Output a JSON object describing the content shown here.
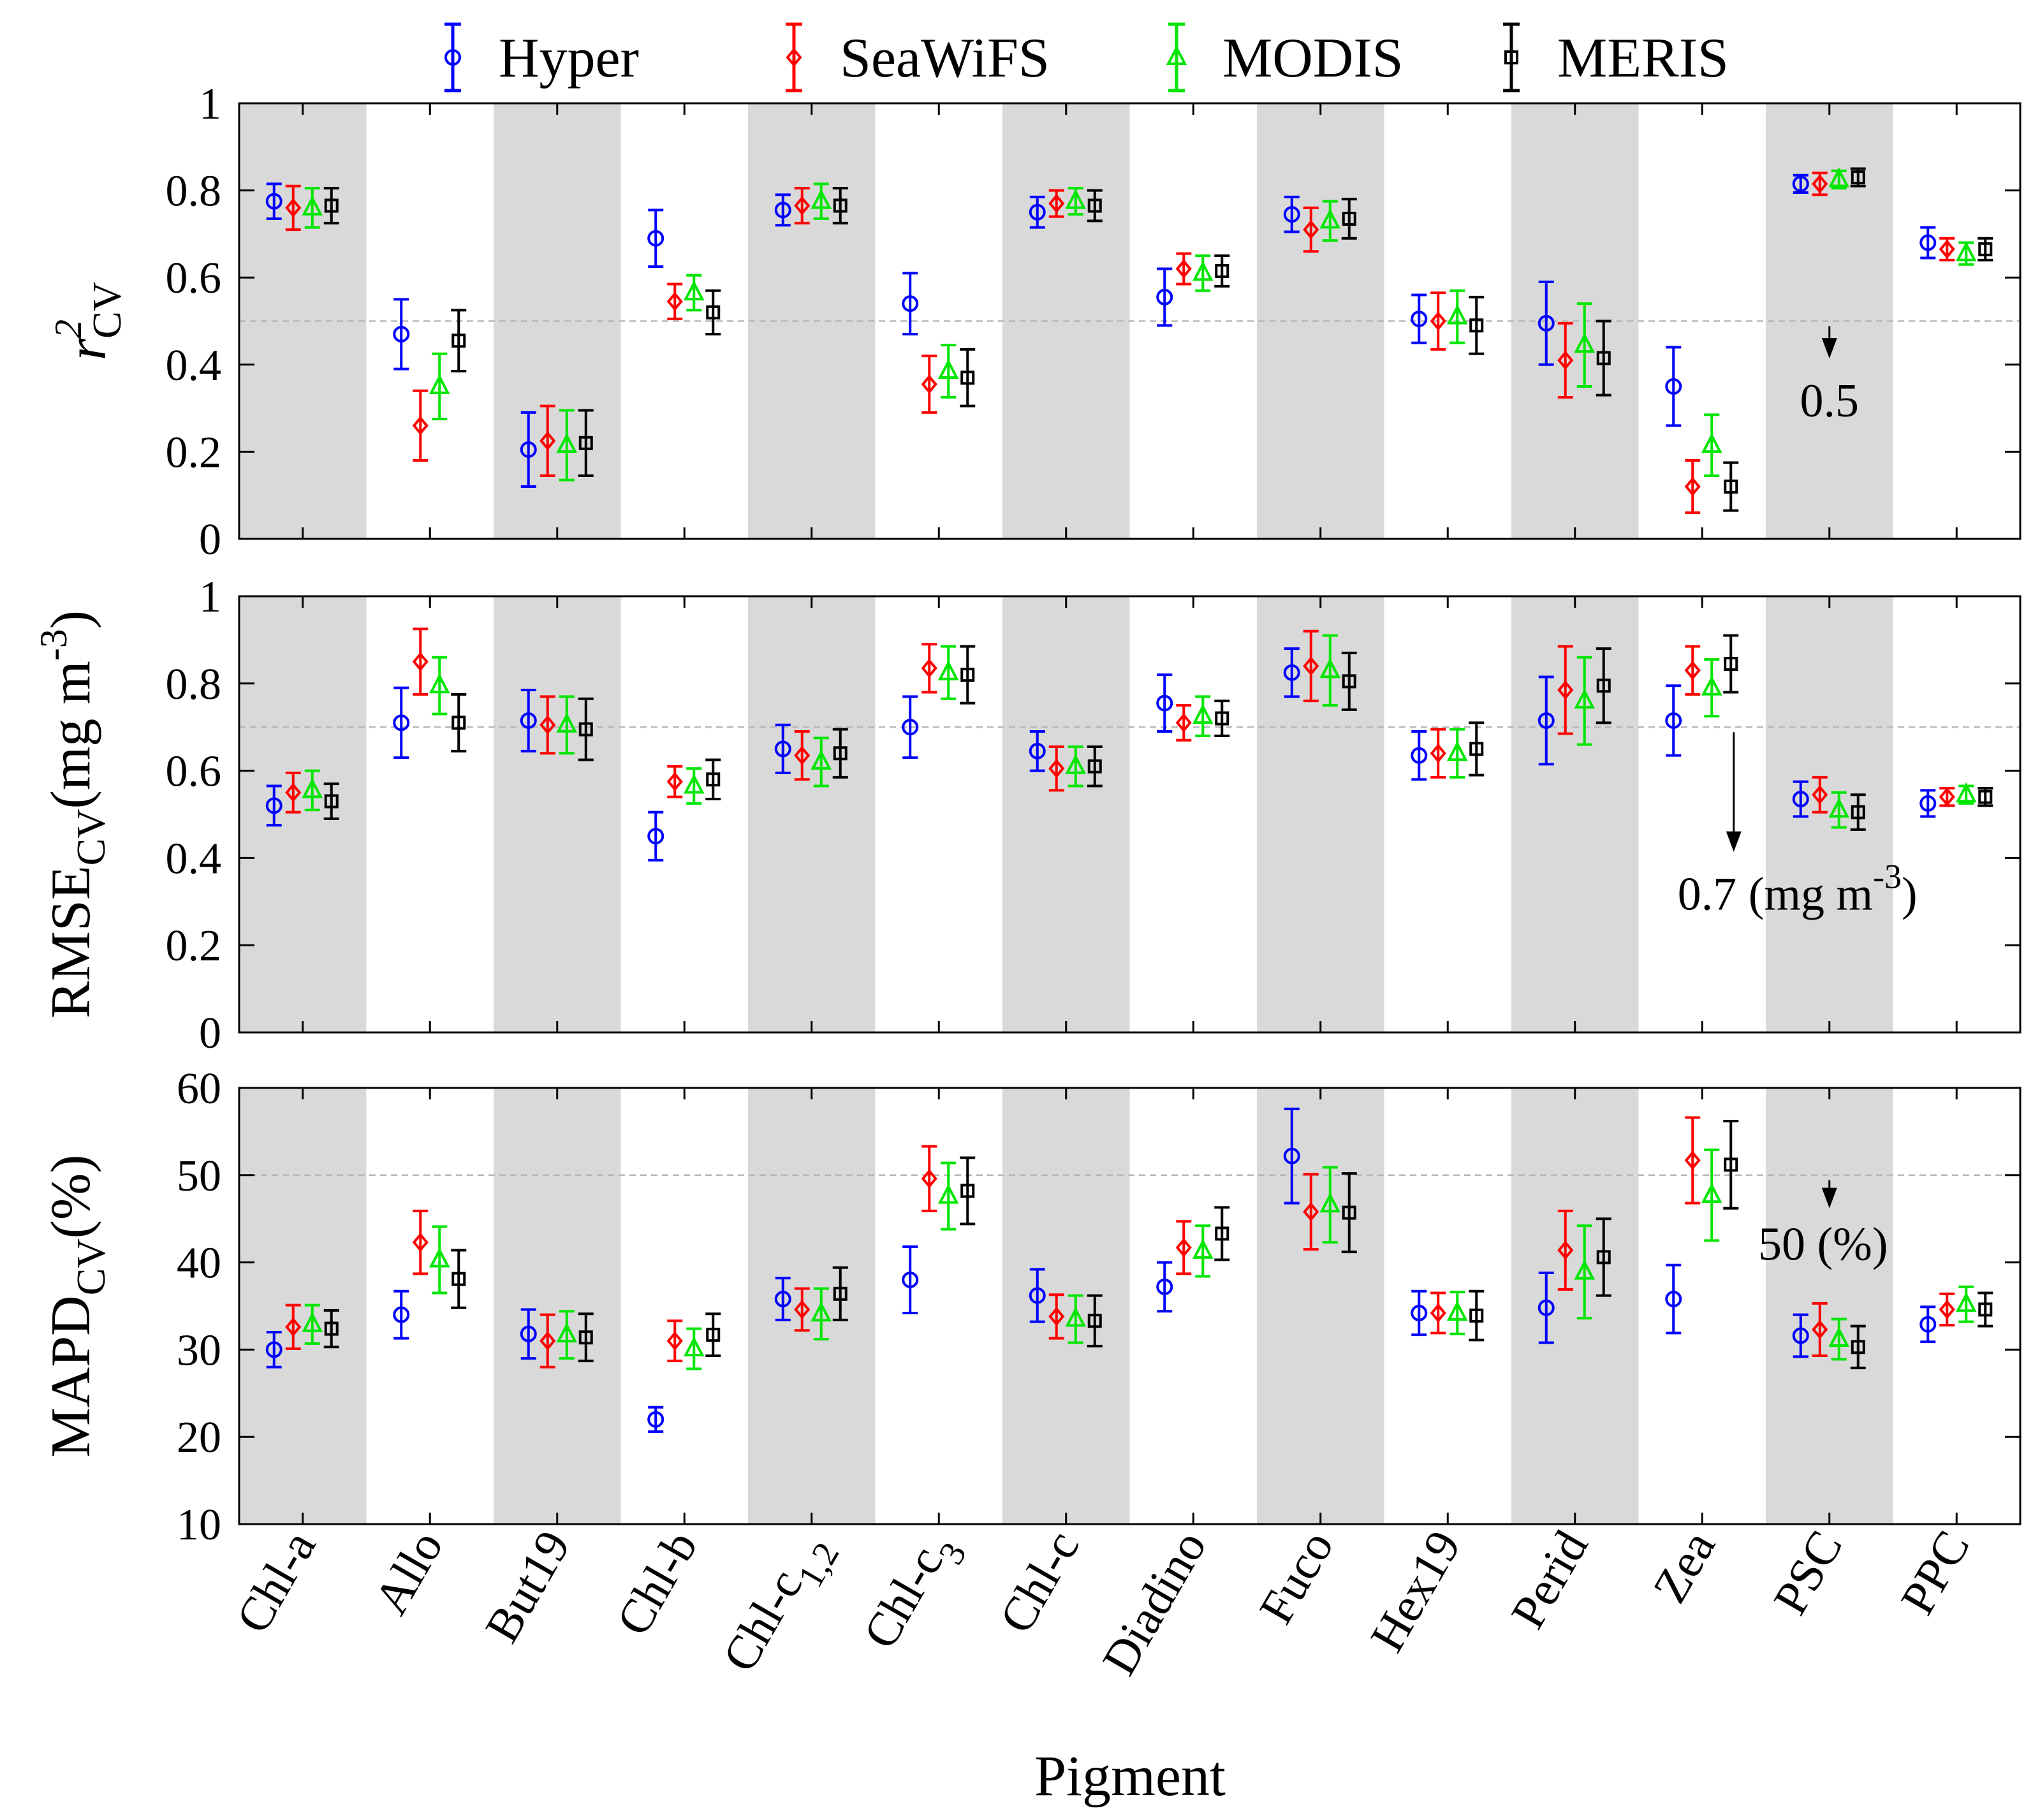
{
  "chart_data": {
    "type": "scatter",
    "subtype": "error-bar",
    "xlabel": "Pigment",
    "categories": [
      "Chl-a",
      "Allo",
      "But19",
      "Chl-b",
      "Chl-c1,2",
      "Chl-c3",
      "Chl-c",
      "Diadino",
      "Fuco",
      "Hex19",
      "Perid",
      "Zea",
      "PSC",
      "PPC"
    ],
    "category_labels": [
      {
        "base": "Chl-a",
        "sub": ""
      },
      {
        "base": "Allo",
        "sub": ""
      },
      {
        "base": "But19",
        "sub": ""
      },
      {
        "base": "Chl-b",
        "sub": ""
      },
      {
        "base": "Chl-c",
        "sub": "1,2"
      },
      {
        "base": "Chl-c",
        "sub": "3"
      },
      {
        "base": "Chl-c",
        "sub": ""
      },
      {
        "base": "Diadino",
        "sub": ""
      },
      {
        "base": "Fuco",
        "sub": ""
      },
      {
        "base": "Hex19",
        "sub": ""
      },
      {
        "base": "Perid",
        "sub": ""
      },
      {
        "base": "Zea",
        "sub": ""
      },
      {
        "base": "PSC",
        "sub": ""
      },
      {
        "base": "PPC",
        "sub": ""
      }
    ],
    "legend": [
      {
        "name": "Hyper",
        "color": "#0000ff",
        "marker": "circle"
      },
      {
        "name": "SeaWiFS",
        "color": "#ff0000",
        "marker": "diamond"
      },
      {
        "name": "MODIS",
        "color": "#00e600",
        "marker": "triangle"
      },
      {
        "name": "MERIS",
        "color": "#000000",
        "marker": "square"
      }
    ],
    "legend_position": "top",
    "panels": [
      {
        "name": "r2",
        "ylabel": {
          "base": "r",
          "sup": "2",
          "sub": "CV",
          "suffix": ""
        },
        "ylim": [
          0,
          1
        ],
        "yticks": [
          0,
          0.2,
          0.4,
          0.6,
          0.8,
          1
        ],
        "yticklabels": [
          "0",
          "0.2",
          "0.4",
          "0.6",
          "0.8",
          "1"
        ],
        "threshold": 0.5,
        "annotation": {
          "text": "0.5",
          "sup": "",
          "suffix": "",
          "category": "PSC",
          "arrow_from": 0.5,
          "arrow_to": 0.42
        },
        "series": [
          {
            "name": "Hyper",
            "values": [
              0.775,
              0.47,
              0.205,
              0.69,
              0.755,
              0.54,
              0.75,
              0.555,
              0.745,
              0.505,
              0.495,
              0.35,
              0.815,
              0.68
            ],
            "errors": [
              0.04,
              0.08,
              0.085,
              0.065,
              0.035,
              0.07,
              0.035,
              0.065,
              0.04,
              0.055,
              0.095,
              0.09,
              0.02,
              0.035
            ]
          },
          {
            "name": "SeaWiFS",
            "values": [
              0.76,
              0.26,
              0.225,
              0.545,
              0.765,
              0.355,
              0.77,
              0.62,
              0.71,
              0.5,
              0.41,
              0.12,
              0.815,
              0.665
            ],
            "errors": [
              0.05,
              0.08,
              0.08,
              0.04,
              0.04,
              0.065,
              0.03,
              0.035,
              0.05,
              0.065,
              0.085,
              0.06,
              0.025,
              0.025
            ]
          },
          {
            "name": "MODIS",
            "values": [
              0.76,
              0.35,
              0.215,
              0.565,
              0.775,
              0.385,
              0.775,
              0.61,
              0.73,
              0.51,
              0.445,
              0.215,
              0.825,
              0.655
            ],
            "errors": [
              0.045,
              0.075,
              0.08,
              0.04,
              0.04,
              0.06,
              0.03,
              0.04,
              0.045,
              0.06,
              0.095,
              0.07,
              0.02,
              0.025
            ]
          },
          {
            "name": "MERIS",
            "values": [
              0.765,
              0.455,
              0.22,
              0.52,
              0.765,
              0.37,
              0.765,
              0.615,
              0.735,
              0.49,
              0.415,
              0.12,
              0.83,
              0.665
            ],
            "errors": [
              0.04,
              0.07,
              0.075,
              0.05,
              0.04,
              0.065,
              0.035,
              0.035,
              0.045,
              0.065,
              0.085,
              0.055,
              0.02,
              0.025
            ]
          }
        ]
      },
      {
        "name": "RMSE",
        "ylabel": {
          "base": "RMSE",
          "sup": "",
          "sub": "CV",
          "suffix": "(mg m",
          "suffix_sup": "-3",
          "suffix_end": ")"
        },
        "ylim": [
          0,
          1
        ],
        "yticks": [
          0,
          0.2,
          0.4,
          0.6,
          0.8,
          1
        ],
        "yticklabels": [
          "0",
          "0.2",
          "0.4",
          "0.6",
          "0.8",
          "1"
        ],
        "threshold": 0.7,
        "annotation": {
          "text": "0.7 (mg m",
          "sup": "-3",
          "suffix": ")",
          "category": "PSC",
          "arrow_from": 0.7,
          "arrow_to": 0.42
        },
        "series": [
          {
            "name": "Hyper",
            "values": [
              0.52,
              0.71,
              0.715,
              0.45,
              0.65,
              0.7,
              0.645,
              0.755,
              0.825,
              0.635,
              0.715,
              0.715,
              0.535,
              0.525
            ],
            "errors": [
              0.045,
              0.08,
              0.07,
              0.055,
              0.055,
              0.07,
              0.045,
              0.065,
              0.055,
              0.055,
              0.1,
              0.08,
              0.04,
              0.03
            ]
          },
          {
            "name": "SeaWiFS",
            "values": [
              0.55,
              0.85,
              0.705,
              0.575,
              0.635,
              0.835,
              0.605,
              0.71,
              0.84,
              0.64,
              0.785,
              0.83,
              0.545,
              0.54
            ],
            "errors": [
              0.045,
              0.075,
              0.065,
              0.035,
              0.055,
              0.055,
              0.05,
              0.04,
              0.08,
              0.055,
              0.1,
              0.055,
              0.04,
              0.02
            ]
          },
          {
            "name": "MODIS",
            "values": [
              0.555,
              0.795,
              0.705,
              0.565,
              0.62,
              0.825,
              0.61,
              0.725,
              0.83,
              0.64,
              0.76,
              0.79,
              0.51,
              0.545
            ],
            "errors": [
              0.045,
              0.065,
              0.065,
              0.04,
              0.055,
              0.06,
              0.045,
              0.045,
              0.08,
              0.055,
              0.1,
              0.065,
              0.04,
              0.02
            ]
          },
          {
            "name": "MERIS",
            "values": [
              0.53,
              0.71,
              0.695,
              0.58,
              0.64,
              0.82,
              0.61,
              0.72,
              0.805,
              0.65,
              0.795,
              0.845,
              0.505,
              0.54
            ],
            "errors": [
              0.04,
              0.065,
              0.07,
              0.045,
              0.055,
              0.065,
              0.045,
              0.04,
              0.065,
              0.06,
              0.085,
              0.065,
              0.04,
              0.02
            ]
          }
        ]
      },
      {
        "name": "MAPD",
        "ylabel": {
          "base": "MAPD",
          "sup": "",
          "sub": "CV",
          "suffix": "(%)"
        },
        "ylim": [
          10,
          60
        ],
        "yticks": [
          10,
          20,
          30,
          40,
          50,
          60
        ],
        "yticklabels": [
          "10",
          "20",
          "30",
          "40",
          "50",
          "60"
        ],
        "threshold": 50,
        "annotation": {
          "text": "50 (%)",
          "sup": "",
          "suffix": "",
          "category": "PSC",
          "arrow_from": 50,
          "arrow_to": 46
        },
        "series": [
          {
            "name": "Hyper",
            "values": [
              30,
              34,
              31.8,
              22,
              35.8,
              38,
              36.2,
              37.2,
              52.2,
              34.2,
              34.8,
              35.8,
              31.6,
              32.9
            ],
            "errors": [
              2,
              2.7,
              2.8,
              1.4,
              2.4,
              3.8,
              3,
              2.8,
              5.4,
              2.5,
              4,
              3.9,
              2.4,
              2
            ]
          },
          {
            "name": "SeaWiFS",
            "values": [
              32.6,
              42.3,
              31,
              31,
              34.6,
              49.6,
              33.8,
              41.7,
              45.8,
              34.2,
              41.4,
              51.7,
              32.3,
              34.6
            ],
            "errors": [
              2.5,
              3.6,
              3,
              2.3,
              2.4,
              3.7,
              2.5,
              3,
              4.3,
              2.3,
              4.5,
              4.9,
              3,
              1.8
            ]
          },
          {
            "name": "MODIS",
            "values": [
              32.9,
              40.3,
              31.7,
              30.1,
              34.1,
              47.6,
              33.5,
              41.3,
              46.6,
              34.2,
              38.9,
              47.7,
              31.2,
              35.2
            ],
            "errors": [
              2.2,
              3.8,
              2.7,
              2.3,
              2.9,
              3.8,
              2.7,
              2.9,
              4.3,
              2.4,
              5.3,
              5.2,
              2.3,
              2
            ]
          },
          {
            "name": "MERIS",
            "values": [
              32.4,
              38.1,
              31.4,
              31.7,
              36.4,
              48.2,
              33.3,
              43.3,
              45.7,
              33.9,
              40.6,
              51.2,
              30.3,
              34.6
            ],
            "errors": [
              2.1,
              3.3,
              2.7,
              2.4,
              3,
              3.8,
              2.9,
              3,
              4.5,
              2.8,
              4.4,
              5,
              2.4,
              1.9
            ]
          }
        ]
      }
    ]
  }
}
